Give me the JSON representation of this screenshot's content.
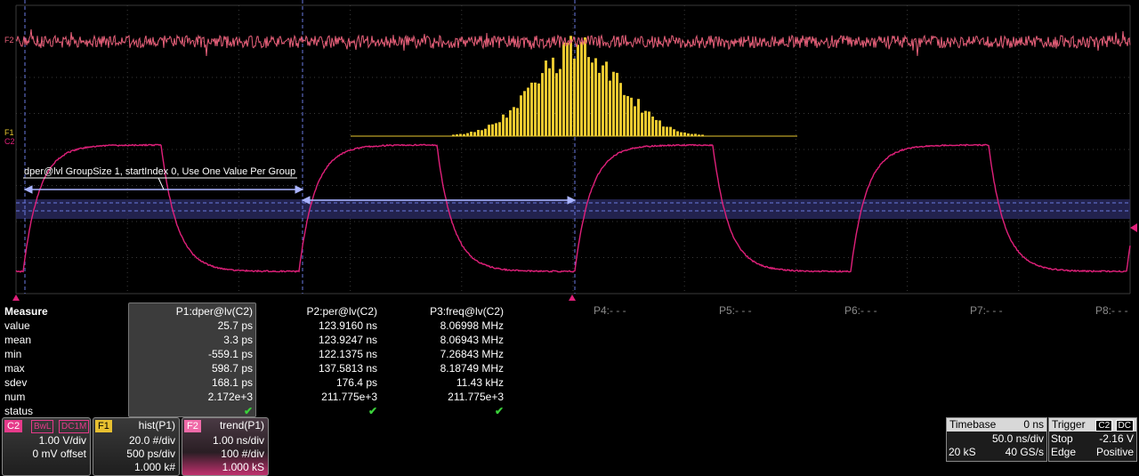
{
  "grid": {
    "color": "#3a3a3a",
    "trace_c2": "#e0207a",
    "trace_f2": "#e8607a",
    "hist": "#e8c830"
  },
  "markers": {
    "f2": "F2",
    "f1": "F1",
    "c2": "C2"
  },
  "annotation": "dper@lvl GroupSize 1, startIndex 0, Use One Value Per Group",
  "measure": {
    "title": "Measure",
    "rows": [
      "value",
      "mean",
      "min",
      "max",
      "sdev",
      "num",
      "status"
    ],
    "p1": {
      "header": "P1:dper@lv(C2)",
      "values": [
        "25.7 ps",
        "3.3 ps",
        "-559.1 ps",
        "598.7 ps",
        "168.1 ps",
        "2.172e+3"
      ],
      "status": "✔"
    },
    "p2": {
      "header": "P2:per@lv(C2)",
      "values": [
        "123.9160 ns",
        "123.9247 ns",
        "122.1375 ns",
        "137.5813 ns",
        "176.4 ps",
        "211.775e+3"
      ],
      "status": "✔"
    },
    "p3": {
      "header": "P3:freq@lv(C2)",
      "values": [
        "8.06998 MHz",
        "8.06943 MHz",
        "7.26843 MHz",
        "8.18749 MHz",
        "11.43 kHz",
        "211.775e+3"
      ],
      "status": "✔"
    },
    "p4": "P4:- - -",
    "p5": "P5:- - -",
    "p6": "P6:- - -",
    "p7": "P7:- - -",
    "p8": "P8:- - -"
  },
  "channels": {
    "c2": {
      "tag": "C2",
      "badges": [
        "BwL",
        "DC1M"
      ],
      "vdiv": "1.00 V/div",
      "offset": "0 mV offset"
    },
    "f1": {
      "tag": "F1",
      "title": "hist(P1)",
      "l1": "20.0 #/div",
      "l2": "500 ps/div",
      "l3": "1.000 k#"
    },
    "f2": {
      "tag": "F2",
      "title": "trend(P1)",
      "l1": "1.00 ns/div",
      "l2": "100 #/div",
      "l3": "1.000 kS"
    }
  },
  "timebase": {
    "label": "Timebase",
    "delay": "0 ns",
    "tdiv": "50.0 ns/div",
    "samples": "20 kS",
    "rate": "40 GS/s"
  },
  "trigger": {
    "label": "Trigger",
    "src": "C2",
    "coupling": "DC",
    "mode": "Stop",
    "level": "-2.16 V",
    "type": "Edge",
    "slope": "Positive"
  }
}
